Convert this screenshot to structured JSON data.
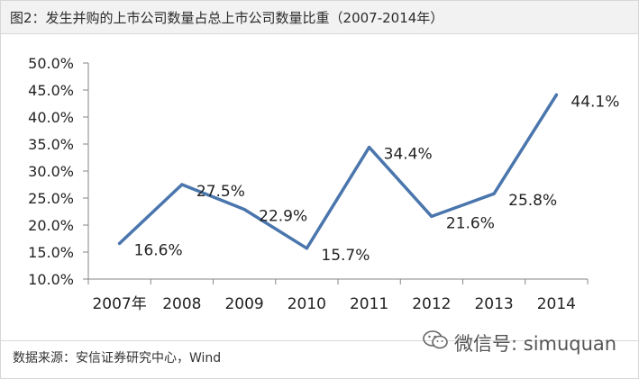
{
  "title": "图2：发生并购的上市公司数量占总上市公司数量比重（2007-2014年）",
  "source": "数据来源：安信证券研究中心，Wind",
  "watermark": {
    "text": "微信号: simuquan",
    "icon": "wechat-icon"
  },
  "colors": {
    "line": "#4a76ad",
    "axis": "#868686",
    "text": "#222222",
    "header_bg": "#f2f2f2"
  },
  "chart_data": {
    "type": "line",
    "categories": [
      "2007年",
      "2008",
      "2009",
      "2010",
      "2011",
      "2012",
      "2013",
      "2014"
    ],
    "series": [
      {
        "values": [
          16.6,
          27.5,
          22.9,
          15.7,
          34.4,
          21.6,
          25.8,
          44.1
        ],
        "labels": [
          "16.6%",
          "27.5%",
          "22.9%",
          "15.7%",
          "34.4%",
          "21.6%",
          "25.8%",
          "44.1%"
        ]
      }
    ],
    "ylim": [
      10,
      50
    ],
    "yticks": [
      "10.0%",
      "15.0%",
      "20.0%",
      "25.0%",
      "30.0%",
      "35.0%",
      "40.0%",
      "45.0%",
      "50.0%"
    ],
    "grid": false,
    "legend": "none"
  }
}
